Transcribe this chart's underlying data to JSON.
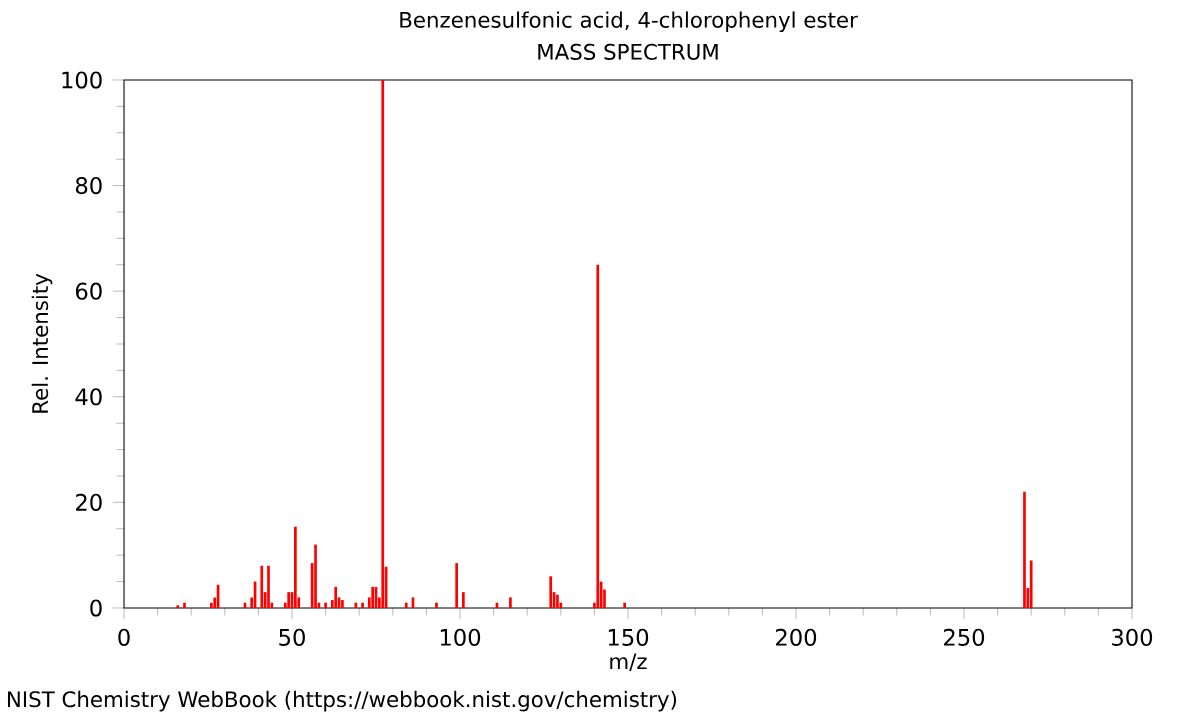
{
  "chart_data": {
    "type": "bar",
    "title": "Benzenesulfonic acid, 4-chlorophenyl ester",
    "subtitle": "MASS SPECTRUM",
    "xlabel": "m/z",
    "ylabel": "Rel. Intensity",
    "x": [
      16,
      18,
      26,
      27,
      28,
      36,
      38,
      39,
      41,
      42,
      43,
      44,
      48,
      49,
      50,
      51,
      52,
      56,
      57,
      58,
      60,
      62,
      63,
      64,
      65,
      69,
      71,
      73,
      74,
      75,
      76,
      77,
      78,
      84,
      86,
      93,
      99,
      101,
      111,
      115,
      127,
      128,
      129,
      130,
      140,
      141,
      142,
      143,
      149,
      268,
      269,
      270
    ],
    "values": [
      0.5,
      1,
      1,
      2,
      4.4,
      1,
      2,
      5,
      8,
      3,
      8,
      1,
      1,
      3,
      3,
      15.4,
      2,
      8.5,
      12,
      1,
      1,
      1.5,
      4,
      2,
      1.5,
      1,
      1,
      2,
      4,
      4,
      2,
      100,
      7.8,
      1,
      2,
      1,
      8.5,
      3,
      1,
      2,
      6,
      3,
      2.5,
      1,
      1,
      65,
      5,
      3.5,
      1,
      22,
      3.8,
      9
    ],
    "color": "#ff0000",
    "xlim": [
      0,
      300
    ],
    "xticks": [
      0,
      50,
      100,
      150,
      200,
      250,
      300
    ],
    "ylim": [
      0,
      100
    ],
    "yticks": [
      0,
      20,
      40,
      60,
      80,
      100
    ],
    "annotations": [
      "NIST Chemistry WebBook (https://webbook.nist.gov/chemistry)"
    ]
  }
}
